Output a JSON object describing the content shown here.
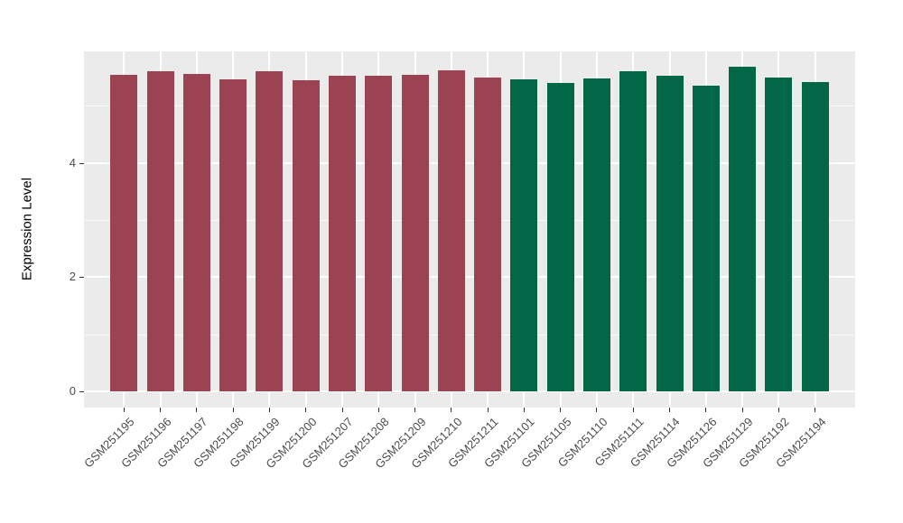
{
  "chart_data": {
    "type": "bar",
    "title": "",
    "xlabel": "",
    "ylabel": "Expression Level",
    "legend_position": "none",
    "grid": true,
    "panel_background": "#EBEBEB",
    "gridline_color": "#FFFFFF",
    "axis_text_color": "#4D4D4D",
    "tick_mark_color": "#333333",
    "y_axis": {
      "ticks": [
        0,
        2,
        4
      ],
      "tick_labels": [
        "0",
        "2",
        "4"
      ],
      "minor_ticks": [
        1,
        3,
        5
      ],
      "range": [
        0,
        5.96
      ]
    },
    "categories": [
      "GSM251195",
      "GSM251196",
      "GSM251197",
      "GSM251198",
      "GSM251199",
      "GSM251200",
      "GSM251207",
      "GSM251208",
      "GSM251209",
      "GSM251210",
      "GSM251211",
      "GSM251101",
      "GSM251105",
      "GSM251110",
      "GSM251111",
      "GSM251114",
      "GSM251126",
      "GSM251129",
      "GSM251192",
      "GSM251194"
    ],
    "values": [
      5.55,
      5.61,
      5.56,
      5.47,
      5.61,
      5.45,
      5.52,
      5.52,
      5.54,
      5.62,
      5.5,
      5.46,
      5.4,
      5.48,
      5.61,
      5.53,
      5.36,
      5.68,
      5.49,
      5.41
    ],
    "groups": [
      "group1",
      "group1",
      "group1",
      "group1",
      "group1",
      "group1",
      "group1",
      "group1",
      "group1",
      "group1",
      "group1",
      "group2",
      "group2",
      "group2",
      "group2",
      "group2",
      "group2",
      "group2",
      "group2",
      "group2"
    ],
    "group_colors": {
      "group1": "#9B4353",
      "group2": "#016747"
    }
  }
}
